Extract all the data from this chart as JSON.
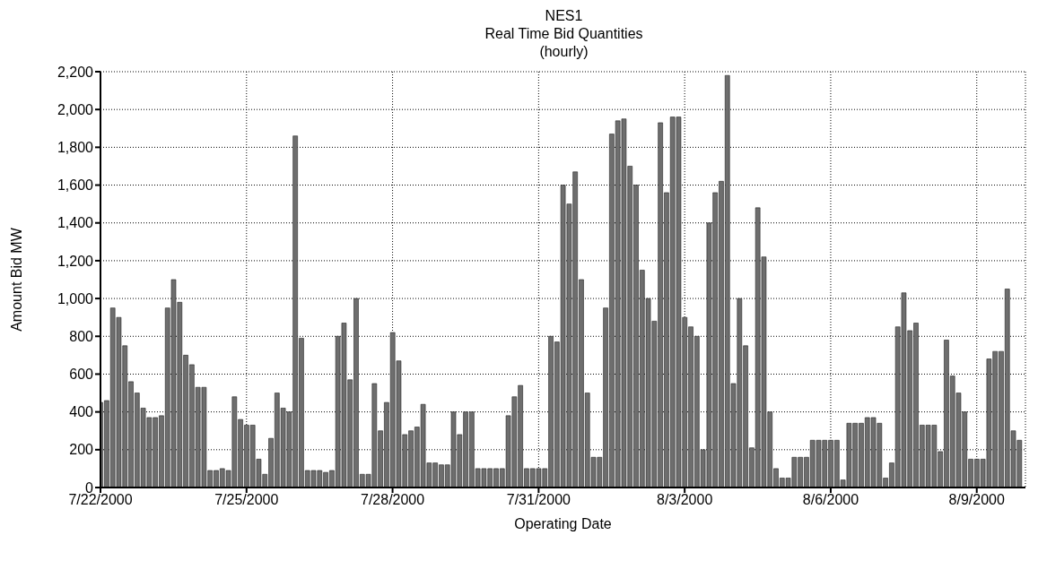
{
  "chart_data": {
    "type": "bar",
    "title": "NES1\nReal Time Bid Quantities",
    "subtitle": "(hourly)",
    "xlabel": "Operating Date",
    "ylabel": "Amount Bid MW",
    "x": [
      "2000-07-22T00:00",
      "2000-07-22T03:00",
      "2000-07-22T06:00",
      "2000-07-22T09:00",
      "2000-07-22T12:00",
      "2000-07-22T15:00",
      "2000-07-22T18:00",
      "2000-07-22T21:00",
      "2000-07-23T00:00",
      "2000-07-23T03:00",
      "2000-07-23T06:00",
      "2000-07-23T09:00",
      "2000-07-23T12:00",
      "2000-07-23T15:00",
      "2000-07-23T18:00",
      "2000-07-23T21:00",
      "2000-07-24T00:00",
      "2000-07-24T03:00",
      "2000-07-24T06:00",
      "2000-07-24T09:00",
      "2000-07-24T12:00",
      "2000-07-24T15:00",
      "2000-07-24T18:00",
      "2000-07-24T21:00",
      "2000-07-25T00:00",
      "2000-07-25T03:00",
      "2000-07-25T06:00",
      "2000-07-25T09:00",
      "2000-07-25T12:00",
      "2000-07-25T15:00",
      "2000-07-25T18:00",
      "2000-07-25T21:00",
      "2000-07-26T00:00",
      "2000-07-26T03:00",
      "2000-07-26T06:00",
      "2000-07-26T09:00",
      "2000-07-26T12:00",
      "2000-07-26T15:00",
      "2000-07-26T18:00",
      "2000-07-26T21:00",
      "2000-07-27T00:00",
      "2000-07-27T03:00",
      "2000-07-27T06:00",
      "2000-07-27T09:00",
      "2000-07-27T12:00",
      "2000-07-27T15:00",
      "2000-07-27T18:00",
      "2000-07-27T21:00",
      "2000-07-28T00:00",
      "2000-07-28T03:00",
      "2000-07-28T06:00",
      "2000-07-28T09:00",
      "2000-07-28T12:00",
      "2000-07-28T15:00",
      "2000-07-28T18:00",
      "2000-07-28T21:00",
      "2000-07-29T00:00",
      "2000-07-29T03:00",
      "2000-07-29T06:00",
      "2000-07-29T09:00",
      "2000-07-29T12:00",
      "2000-07-29T15:00",
      "2000-07-29T18:00",
      "2000-07-29T21:00",
      "2000-07-30T00:00",
      "2000-07-30T03:00",
      "2000-07-30T06:00",
      "2000-07-30T09:00",
      "2000-07-30T12:00",
      "2000-07-30T15:00",
      "2000-07-30T18:00",
      "2000-07-30T21:00",
      "2000-07-31T00:00",
      "2000-07-31T03:00",
      "2000-07-31T06:00",
      "2000-07-31T09:00",
      "2000-07-31T12:00",
      "2000-07-31T15:00",
      "2000-07-31T18:00",
      "2000-07-31T21:00",
      "2000-08-01T00:00",
      "2000-08-01T03:00",
      "2000-08-01T06:00",
      "2000-08-01T09:00",
      "2000-08-01T12:00",
      "2000-08-01T15:00",
      "2000-08-01T18:00",
      "2000-08-01T21:00",
      "2000-08-02T00:00",
      "2000-08-02T03:00",
      "2000-08-02T06:00",
      "2000-08-02T09:00",
      "2000-08-02T12:00",
      "2000-08-02T15:00",
      "2000-08-02T18:00",
      "2000-08-02T21:00",
      "2000-08-03T00:00",
      "2000-08-03T03:00",
      "2000-08-03T06:00",
      "2000-08-03T09:00",
      "2000-08-03T12:00",
      "2000-08-03T15:00",
      "2000-08-03T18:00",
      "2000-08-03T21:00",
      "2000-08-04T00:00",
      "2000-08-04T03:00",
      "2000-08-04T06:00",
      "2000-08-04T09:00",
      "2000-08-04T12:00",
      "2000-08-04T15:00",
      "2000-08-04T18:00",
      "2000-08-04T21:00",
      "2000-08-05T00:00",
      "2000-08-05T03:00",
      "2000-08-05T06:00",
      "2000-08-05T09:00",
      "2000-08-05T12:00",
      "2000-08-05T15:00",
      "2000-08-05T18:00",
      "2000-08-05T21:00",
      "2000-08-06T00:00",
      "2000-08-06T03:00",
      "2000-08-06T06:00",
      "2000-08-06T09:00",
      "2000-08-06T12:00",
      "2000-08-06T15:00",
      "2000-08-06T18:00",
      "2000-08-06T21:00",
      "2000-08-07T00:00",
      "2000-08-07T03:00",
      "2000-08-07T06:00",
      "2000-08-07T09:00",
      "2000-08-07T12:00",
      "2000-08-07T15:00",
      "2000-08-07T18:00",
      "2000-08-07T21:00",
      "2000-08-08T00:00",
      "2000-08-08T03:00",
      "2000-08-08T06:00",
      "2000-08-08T09:00",
      "2000-08-08T12:00",
      "2000-08-08T15:00",
      "2000-08-08T18:00",
      "2000-08-08T21:00",
      "2000-08-09T00:00",
      "2000-08-09T03:00",
      "2000-08-09T06:00",
      "2000-08-09T09:00",
      "2000-08-09T12:00",
      "2000-08-09T15:00",
      "2000-08-09T18:00",
      "2000-08-09T21:00"
    ],
    "values": [
      450,
      460,
      950,
      900,
      750,
      560,
      500,
      420,
      370,
      370,
      380,
      950,
      1100,
      980,
      700,
      650,
      530,
      530,
      90,
      90,
      100,
      90,
      480,
      360,
      330,
      330,
      150,
      70,
      260,
      500,
      420,
      400,
      1860,
      790,
      90,
      90,
      90,
      80,
      90,
      800,
      870,
      570,
      1000,
      70,
      70,
      550,
      300,
      450,
      820,
      670,
      280,
      300,
      320,
      440,
      130,
      130,
      120,
      120,
      400,
      280,
      400,
      400,
      100,
      100,
      100,
      100,
      100,
      380,
      480,
      540,
      100,
      100,
      100,
      100,
      800,
      770,
      1600,
      1500,
      1670,
      1100,
      500,
      160,
      160,
      950,
      1870,
      1940,
      1950,
      1700,
      1600,
      1150,
      1000,
      880,
      1930,
      1560,
      1960,
      1960,
      900,
      850,
      800,
      200,
      1400,
      1560,
      1620,
      2180,
      550,
      1000,
      750,
      210,
      1480,
      1220,
      400,
      100,
      50,
      50,
      160,
      160,
      160,
      250,
      250,
      250,
      250,
      250,
      40,
      340,
      340,
      340,
      370,
      370,
      340,
      50,
      130,
      850,
      1030,
      830,
      870,
      330,
      330,
      330,
      190,
      780,
      590,
      500,
      400,
      150,
      150,
      150,
      680,
      720,
      720,
      1050,
      300,
      250
    ],
    "color": "#6e6e6e",
    "xlim": [
      "2000-07-22",
      "2000-08-10"
    ],
    "xticks": [
      {
        "value": "2000-07-22",
        "label": "7/22/2000"
      },
      {
        "value": "2000-07-25",
        "label": "7/25/2000"
      },
      {
        "value": "2000-07-28",
        "label": "7/28/2000"
      },
      {
        "value": "2000-07-31",
        "label": "7/31/2000"
      },
      {
        "value": "2000-08-03",
        "label": "8/3/2000"
      },
      {
        "value": "2000-08-06",
        "label": "8/6/2000"
      },
      {
        "value": "2000-08-09",
        "label": "8/9/2000"
      }
    ],
    "ylim": [
      0,
      2200
    ],
    "yticks": [
      0,
      200,
      400,
      600,
      800,
      {
        "value": 1000,
        "label": "1,000"
      },
      {
        "value": 1200,
        "label": "1,200"
      },
      {
        "value": 1400,
        "label": "1,400"
      },
      {
        "value": 1600,
        "label": "1,600"
      },
      {
        "value": 1800,
        "label": "1,800"
      },
      {
        "value": 2000,
        "label": "2,000"
      },
      {
        "value": 2200,
        "label": "2,200"
      }
    ],
    "grid": true,
    "legend": false
  }
}
